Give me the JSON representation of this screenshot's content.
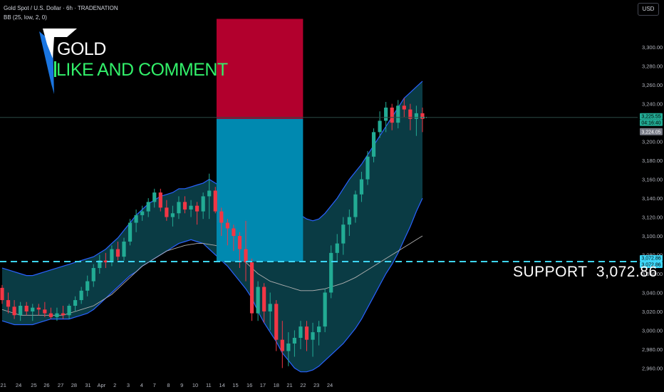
{
  "header": {
    "title": "Gold Spot / U.S. Dollar · 6h · TRADENATION",
    "indicator": "BB (25, low, 2, 0)",
    "currency_button": "USD"
  },
  "branding": {
    "word1": "GOLD",
    "word2": "LIKE AND COMMENT"
  },
  "annotation": {
    "support_text": "SUPPORT  3,072.86"
  },
  "price_tags": {
    "last_price": "3,225.55",
    "countdown": "04:16:40",
    "prev_price": "3,224.05",
    "support_a": "3,072.86",
    "support_b": "3,072.86"
  },
  "colors": {
    "up": "#22ab94",
    "down": "#f23645",
    "band_fill": "#0b3e48",
    "band_line": "#2962ff",
    "basis_line": "#b0b0b0",
    "target_box": "#b2002d",
    "stop_box": "#0089b0",
    "support_line": "#3ed6f7",
    "logo_white": "#ffffff",
    "logo_green": "#32f06a",
    "logo_blue": "#1a75e0"
  },
  "chart_data": {
    "type": "candlestick",
    "title": "Gold Spot / U.S. Dollar · 6h · TRADENATION",
    "ylim": [
      2952,
      3350
    ],
    "y_ticks": [
      2960,
      2980,
      3000,
      3020,
      3040,
      3060,
      3080,
      3100,
      3120,
      3140,
      3160,
      3180,
      3200,
      3220,
      3240,
      3260,
      3280,
      3300
    ],
    "y_tick_labels": [
      "2,960.00",
      "2,980.00",
      "3,000.00",
      "3,020.00",
      "3,040.00",
      "3,060.00",
      "3,080.00",
      "3,100.00",
      "3,120.00",
      "3,140.00",
      "3,160.00",
      "3,180.00",
      "3,200.00",
      "3,220.00",
      "3,240.00",
      "3,260.00",
      "3,280.00",
      "3,300.00"
    ],
    "x_ticks": [
      {
        "label": "21",
        "bar": 0.2
      },
      {
        "label": "24",
        "bar": 2.7
      },
      {
        "label": "25",
        "bar": 5.2
      },
      {
        "label": "26",
        "bar": 7.3
      },
      {
        "label": "27",
        "bar": 9.6
      },
      {
        "label": "28",
        "bar": 11.8
      },
      {
        "label": "31",
        "bar": 14.1
      },
      {
        "label": "Apr",
        "bar": 16.3
      },
      {
        "label": "2",
        "bar": 18.5
      },
      {
        "label": "3",
        "bar": 20.7
      },
      {
        "label": "4",
        "bar": 22.9
      },
      {
        "label": "7",
        "bar": 25.0
      },
      {
        "label": "8",
        "bar": 27.3
      },
      {
        "label": "9",
        "bar": 29.5
      },
      {
        "label": "10",
        "bar": 31.7
      },
      {
        "label": "11",
        "bar": 33.9
      },
      {
        "label": "14",
        "bar": 36.1
      },
      {
        "label": "15",
        "bar": 38.3
      },
      {
        "label": "16",
        "bar": 40.6
      },
      {
        "label": "17",
        "bar": 42.8
      },
      {
        "label": "18",
        "bar": 45.0
      },
      {
        "label": "21",
        "bar": 47.2
      },
      {
        "label": "22",
        "bar": 49.4
      },
      {
        "label": "23",
        "bar": 51.6
      },
      {
        "label": "24",
        "bar": 53.8
      }
    ],
    "candles": [
      [
        3045,
        3048,
        3028,
        3032
      ],
      [
        3032,
        3040,
        3018,
        3025
      ],
      [
        3025,
        3032,
        3012,
        3016
      ],
      [
        3016,
        3030,
        3010,
        3026
      ],
      [
        3026,
        3030,
        3016,
        3020
      ],
      [
        3020,
        3028,
        3010,
        3024
      ],
      [
        3024,
        3028,
        3016,
        3022
      ],
      [
        3022,
        3030,
        3014,
        3018
      ],
      [
        3018,
        3024,
        3012,
        3014
      ],
      [
        3014,
        3024,
        3010,
        3018
      ],
      [
        3018,
        3026,
        3012,
        3016
      ],
      [
        3016,
        3028,
        3012,
        3026
      ],
      [
        3026,
        3036,
        3020,
        3032
      ],
      [
        3032,
        3046,
        3028,
        3042
      ],
      [
        3042,
        3058,
        3036,
        3052
      ],
      [
        3052,
        3070,
        3046,
        3066
      ],
      [
        3066,
        3080,
        3060,
        3074
      ],
      [
        3074,
        3082,
        3066,
        3072
      ],
      [
        3072,
        3090,
        3068,
        3086
      ],
      [
        3086,
        3094,
        3074,
        3078
      ],
      [
        3078,
        3098,
        3074,
        3094
      ],
      [
        3094,
        3118,
        3090,
        3114
      ],
      [
        3114,
        3128,
        3104,
        3122
      ],
      [
        3122,
        3132,
        3116,
        3126
      ],
      [
        3126,
        3140,
        3120,
        3136
      ],
      [
        3136,
        3150,
        3130,
        3146
      ],
      [
        3146,
        3150,
        3126,
        3130
      ],
      [
        3130,
        3138,
        3116,
        3120
      ],
      [
        3120,
        3132,
        3110,
        3124
      ],
      [
        3124,
        3142,
        3118,
        3136
      ],
      [
        3136,
        3142,
        3124,
        3128
      ],
      [
        3128,
        3138,
        3120,
        3132
      ],
      [
        3132,
        3136,
        3112,
        3126
      ],
      [
        3126,
        3146,
        3118,
        3142
      ],
      [
        3142,
        3166,
        3118,
        3148
      ],
      [
        3148,
        3152,
        3124,
        3126
      ],
      [
        3126,
        3130,
        3100,
        3114
      ],
      [
        3114,
        3118,
        3090,
        3108
      ],
      [
        3108,
        3112,
        3084,
        3100
      ],
      [
        3100,
        3104,
        3066,
        3086
      ],
      [
        3086,
        3116,
        3052,
        3072
      ],
      [
        3072,
        3076,
        3010,
        3018
      ],
      [
        3018,
        3052,
        3010,
        3046
      ],
      [
        3046,
        3050,
        3008,
        3020
      ],
      [
        3020,
        3040,
        3000,
        3028
      ],
      [
        3028,
        3032,
        2978,
        2990
      ],
      [
        2990,
        3010,
        2960,
        2978
      ],
      [
        2978,
        2998,
        2962,
        2986
      ],
      [
        2986,
        3000,
        2972,
        2992
      ],
      [
        2992,
        3010,
        2980,
        3004
      ],
      [
        3004,
        3010,
        2978,
        2990
      ],
      [
        2990,
        3008,
        2972,
        2998
      ],
      [
        2998,
        3010,
        2984,
        3004
      ],
      [
        3004,
        3044,
        2998,
        3040
      ],
      [
        3040,
        3090,
        3034,
        3082
      ],
      [
        3082,
        3102,
        3072,
        3092
      ],
      [
        3092,
        3120,
        3080,
        3112
      ],
      [
        3112,
        3128,
        3100,
        3120
      ],
      [
        3120,
        3148,
        3114,
        3144
      ],
      [
        3144,
        3168,
        3136,
        3160
      ],
      [
        3160,
        3190,
        3154,
        3184
      ],
      [
        3184,
        3214,
        3178,
        3210
      ],
      [
        3210,
        3232,
        3204,
        3222
      ],
      [
        3222,
        3242,
        3210,
        3236
      ],
      [
        3236,
        3240,
        3212,
        3220
      ],
      [
        3220,
        3244,
        3214,
        3238
      ],
      [
        3238,
        3246,
        3226,
        3234
      ],
      [
        3234,
        3240,
        3212,
        3224
      ],
      [
        3224,
        3238,
        3206,
        3230
      ],
      [
        3230,
        3236,
        3210,
        3224
      ]
    ],
    "bb_upper": [
      3066,
      3064,
      3062,
      3060,
      3058,
      3058,
      3060,
      3062,
      3064,
      3066,
      3068,
      3070,
      3072,
      3074,
      3076,
      3078,
      3082,
      3086,
      3092,
      3098,
      3106,
      3114,
      3122,
      3128,
      3134,
      3138,
      3142,
      3144,
      3146,
      3150,
      3150,
      3152,
      3154,
      3156,
      3160,
      3156,
      3152,
      3146,
      3140,
      3136,
      3138,
      3142,
      3146,
      3150,
      3152,
      3150,
      3146,
      3138,
      3130,
      3122,
      3118,
      3116,
      3118,
      3124,
      3132,
      3140,
      3150,
      3160,
      3168,
      3176,
      3186,
      3196,
      3206,
      3216,
      3226,
      3236,
      3246,
      3252,
      3258,
      3264
    ],
    "bb_lower": [
      3010,
      3008,
      3006,
      3006,
      3006,
      3006,
      3008,
      3010,
      3012,
      3012,
      3012,
      3012,
      3014,
      3016,
      3018,
      3022,
      3028,
      3034,
      3040,
      3046,
      3052,
      3058,
      3062,
      3068,
      3072,
      3076,
      3080,
      3084,
      3088,
      3092,
      3094,
      3096,
      3094,
      3092,
      3086,
      3080,
      3074,
      3068,
      3060,
      3052,
      3044,
      3034,
      3020,
      3008,
      2998,
      2988,
      2976,
      2968,
      2960,
      2956,
      2956,
      2958,
      2962,
      2968,
      2974,
      2980,
      2986,
      2994,
      3002,
      3012,
      3024,
      3036,
      3048,
      3060,
      3070,
      3082,
      3096,
      3110,
      3126,
      3140
    ],
    "bb_basis": [
      3022,
      3020,
      3018,
      3016,
      3016,
      3016,
      3016,
      3016,
      3016,
      3016,
      3016,
      3018,
      3020,
      3022,
      3024,
      3026,
      3030,
      3034,
      3038,
      3044,
      3050,
      3056,
      3062,
      3068,
      3072,
      3076,
      3080,
      3084,
      3086,
      3088,
      3090,
      3091,
      3092,
      3092,
      3091,
      3090,
      3088,
      3084,
      3080,
      3076,
      3072,
      3066,
      3060,
      3056,
      3052,
      3050,
      3048,
      3046,
      3044,
      3042,
      3042,
      3042,
      3043,
      3044,
      3046,
      3048,
      3050,
      3053,
      3056,
      3060,
      3064,
      3068,
      3072,
      3076,
      3080,
      3084,
      3088,
      3092,
      3096,
      3100
    ],
    "position_box": {
      "bar_start": 35.2,
      "bar_end": 49.4,
      "entry": 3224.05,
      "target": 3330,
      "stop": 3072.86
    },
    "support_level": 3072.86,
    "last_price": 3225.55
  }
}
